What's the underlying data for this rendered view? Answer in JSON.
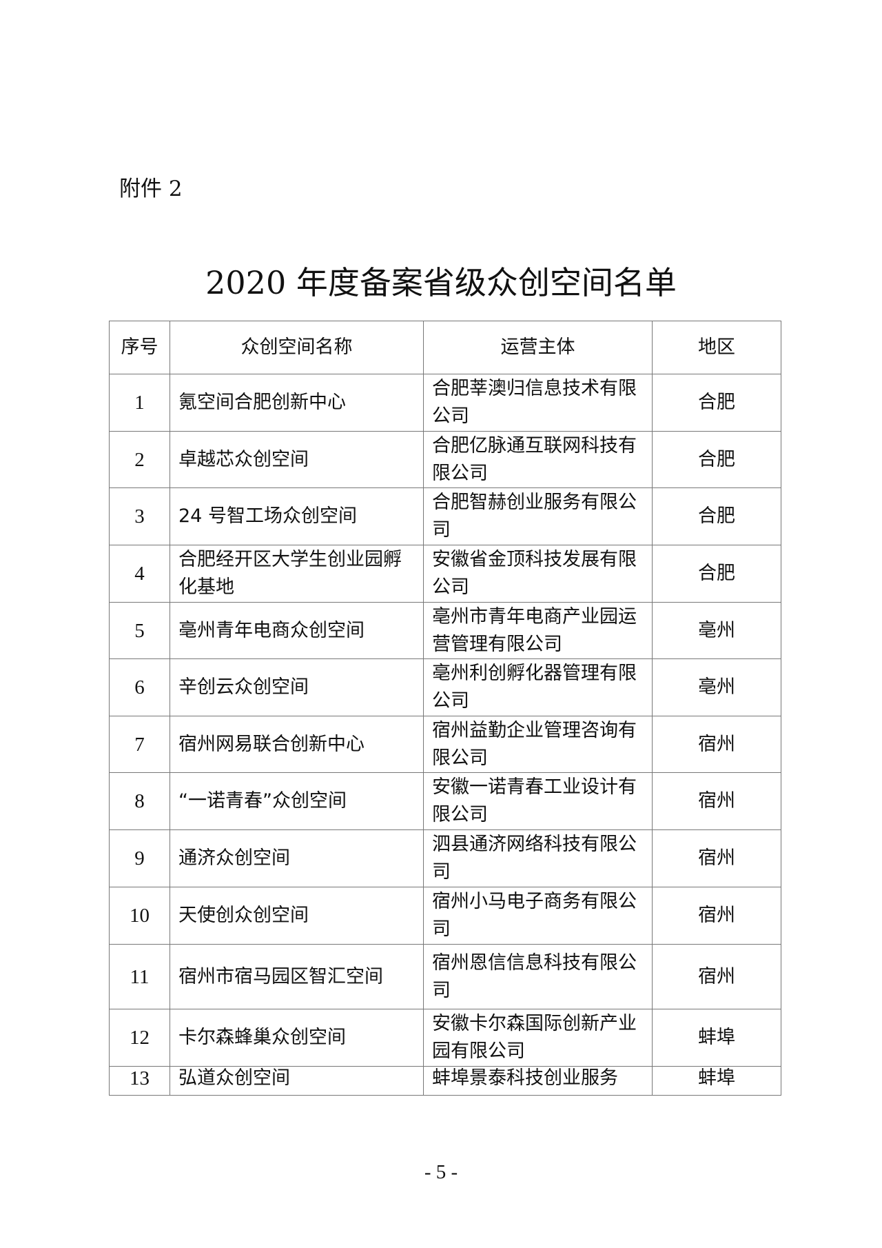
{
  "attachment_label": "附件 2",
  "title": "2020 年度备案省级众创空间名单",
  "table": {
    "headers": [
      "序号",
      "众创空间名称",
      "运营主体",
      "地区"
    ],
    "rows": [
      {
        "no": "1",
        "name": "氪空间合肥创新中心",
        "operator": "合肥莘澳归信息技术有限公司",
        "region": "合肥"
      },
      {
        "no": "2",
        "name": "卓越芯众创空间",
        "operator": "合肥亿脉通互联网科技有限公司",
        "region": "合肥"
      },
      {
        "no": "3",
        "name": "24 号智工场众创空间",
        "operator": "合肥智赫创业服务有限公司",
        "region": "合肥"
      },
      {
        "no": "4",
        "name": "合肥经开区大学生创业园孵化基地",
        "operator": "安徽省金顶科技发展有限公司",
        "region": "合肥"
      },
      {
        "no": "5",
        "name": "亳州青年电商众创空间",
        "operator": "亳州市青年电商产业园运营管理有限公司",
        "region": "亳州"
      },
      {
        "no": "6",
        "name": "辛创云众创空间",
        "operator": "亳州利创孵化器管理有限公司",
        "region": "亳州"
      },
      {
        "no": "7",
        "name": "宿州网易联合创新中心",
        "operator": "宿州益勤企业管理咨询有限公司",
        "region": "宿州"
      },
      {
        "no": "8",
        "name": "“一诺青春”众创空间",
        "operator": "安徽一诺青春工业设计有限公司",
        "region": "宿州"
      },
      {
        "no": "9",
        "name": "通济众创空间",
        "operator": "泗县通济网络科技有限公司",
        "region": "宿州"
      },
      {
        "no": "10",
        "name": "天使创众创空间",
        "operator": "宿州小马电子商务有限公司",
        "region": "宿州"
      },
      {
        "no": "11",
        "name": "宿州市宿马园区智汇空间",
        "operator": "宿州恩信信息科技有限公司",
        "region": "宿州"
      },
      {
        "no": "12",
        "name": "卡尔森蜂巢众创空间",
        "operator": "安徽卡尔森国际创新产业园有限公司",
        "region": "蚌埠"
      },
      {
        "no": "13",
        "name": "弘道众创空间",
        "operator": "蚌埠景泰科技创业服务",
        "region": "蚌埠"
      }
    ]
  },
  "page_number": "- 5 -"
}
